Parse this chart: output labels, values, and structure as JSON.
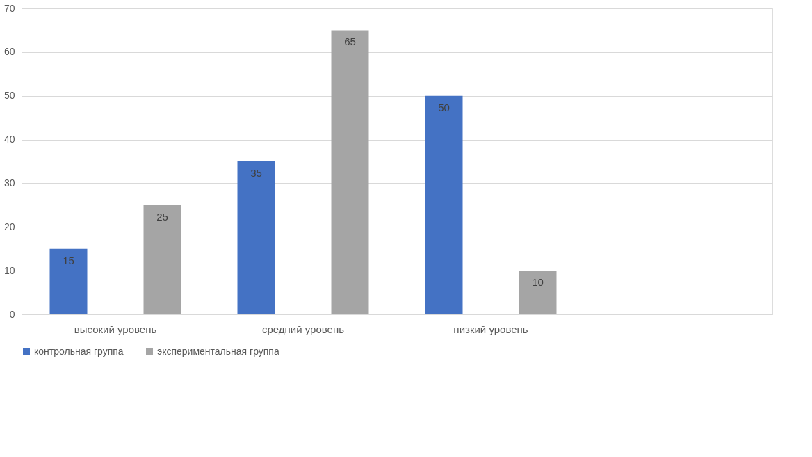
{
  "chart_data": {
    "type": "bar",
    "categories": [
      "высокий уровень",
      "средний уровень",
      "низкий уровень",
      null
    ],
    "series": [
      {
        "name": "контрольная группа",
        "color": "#4472c4",
        "values": [
          15,
          35,
          50,
          null
        ]
      },
      {
        "name": "экспериментальная группа",
        "color": "#a5a5a5",
        "values": [
          25,
          65,
          10,
          null
        ]
      }
    ],
    "ylim": [
      0,
      70
    ],
    "yticks": [
      0,
      10,
      20,
      30,
      40,
      50,
      60,
      70
    ],
    "grid": "y",
    "legend": "bottom",
    "data_labels": true
  }
}
